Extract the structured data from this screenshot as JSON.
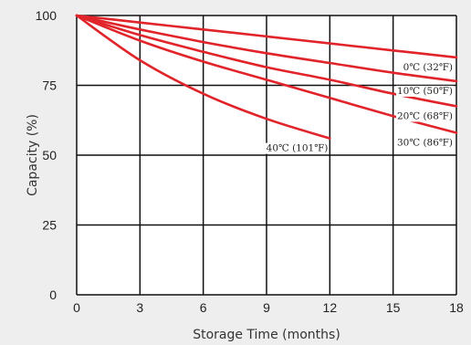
{
  "chart_data": {
    "type": "line",
    "title": "",
    "xlabel": "Storage Time (months)",
    "ylabel": "Capacity (%)",
    "xlim": [
      0,
      18
    ],
    "ylim": [
      0,
      100
    ],
    "xticks": [
      0,
      3,
      6,
      9,
      12,
      15,
      18
    ],
    "yticks": [
      0,
      25,
      50,
      75,
      100
    ],
    "grid": true,
    "line_color": "#e0242a",
    "grid_color": "#111111",
    "background": "#ffffff",
    "series": [
      {
        "name": "0℃ (32℉)",
        "x": [
          0,
          3,
          6,
          9,
          12,
          15,
          18
        ],
        "y": [
          100,
          97.5,
          95,
          92.5,
          90,
          87.5,
          85
        ]
      },
      {
        "name": "10℃ (50℉)",
        "x": [
          0,
          3,
          6,
          9,
          12,
          15,
          18
        ],
        "y": [
          100,
          95,
          90.5,
          86.5,
          83,
          79.5,
          76.5
        ]
      },
      {
        "name": "20℃ (68℉)",
        "x": [
          0,
          3,
          6,
          9,
          12,
          15,
          18
        ],
        "y": [
          100,
          93,
          87,
          81.5,
          77,
          72,
          67.5
        ]
      },
      {
        "name": "30℃ (86℉)",
        "x": [
          0,
          3,
          6,
          9,
          12,
          15,
          18
        ],
        "y": [
          100,
          91,
          83.5,
          77,
          70.5,
          64,
          58
        ]
      },
      {
        "name": "40℃ (101℉)",
        "x": [
          0,
          3,
          6,
          9,
          12
        ],
        "y": [
          100,
          84,
          72,
          63,
          56
        ]
      }
    ]
  }
}
